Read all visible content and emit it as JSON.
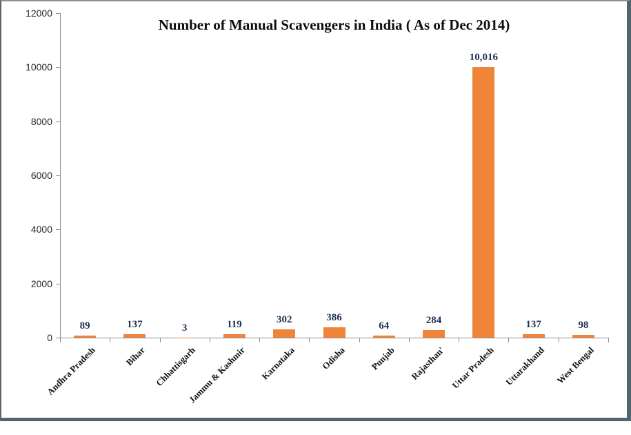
{
  "chart_data": {
    "type": "bar",
    "title": "Number of Manual Scavengers in India ( As of Dec 2014)",
    "categories": [
      "Andhra Pradesh",
      "Bihar",
      "Chhattisgarh",
      "Jammu & Kashmir",
      "Karnataka",
      "Odisha",
      "Punjab",
      "Rajasthan'",
      "Uttar Pradesh",
      "Uttarakhand",
      "West Bengal"
    ],
    "values": [
      89,
      137,
      3,
      119,
      302,
      386,
      64,
      284,
      10016,
      137,
      98
    ],
    "value_labels": [
      "89",
      "137",
      "3",
      "119",
      "302",
      "386",
      "64",
      "284",
      "10,016",
      "137",
      "98"
    ],
    "xlabel": "",
    "ylabel": "",
    "ylim": [
      0,
      12000
    ],
    "yticks": [
      0,
      2000,
      4000,
      6000,
      8000,
      10000,
      12000
    ],
    "ytick_labels": [
      "0",
      "2000",
      "4000",
      "6000",
      "8000",
      "10000",
      "12000"
    ],
    "grid": false,
    "legend": "none",
    "bar_color": "#F08438",
    "axis_color": "#8C8C8C",
    "title_color": "#0D0D0D",
    "value_label_color": "#1F3050",
    "tick_label_color": "#262626"
  }
}
